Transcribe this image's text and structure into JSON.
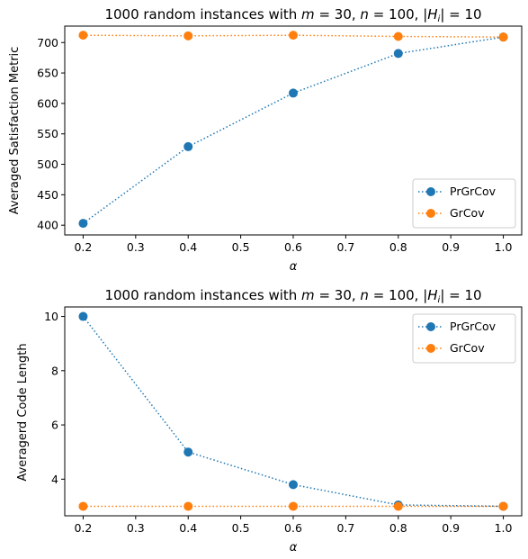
{
  "chart_data": [
    {
      "type": "line",
      "title": "1000 random instances with m = 30, n = 100, |H_i| = 10",
      "title_parts": {
        "prefix": "1000 random instances with ",
        "m_var": "m",
        "m_val": " = 30, ",
        "n_var": "n",
        "n_val": " = 100, |",
        "h_var": "H",
        "h_sub": "i",
        "h_val": "| = 10"
      },
      "xlabel": "α",
      "ylabel": "Averaged Satisfaction Metric",
      "x": [
        0.2,
        0.4,
        0.6,
        0.8,
        1.0
      ],
      "xlim": [
        0.165,
        1.035
      ],
      "ylim": [
        384,
        727
      ],
      "xticks": [
        "0.2",
        "0.3",
        "0.4",
        "0.5",
        "0.6",
        "0.7",
        "0.8",
        "0.9",
        "1.0"
      ],
      "yticks": [
        "400",
        "450",
        "500",
        "550",
        "600",
        "650",
        "700"
      ],
      "grid": false,
      "legend_position": "lower right",
      "series": [
        {
          "name": "PrGrCov",
          "color": "#1f77b4",
          "values": [
            403,
            529,
            617,
            682,
            709
          ]
        },
        {
          "name": "GrCov",
          "color": "#ff7f0e",
          "values": [
            712,
            711,
            712,
            710,
            709
          ]
        }
      ]
    },
    {
      "type": "line",
      "title": "1000 random instances with m = 30, n = 100, |H_i| = 10",
      "title_parts": {
        "prefix": "1000 random instances with ",
        "m_var": "m",
        "m_val": " = 30, ",
        "n_var": "n",
        "n_val": " = 100, |",
        "h_var": "H",
        "h_sub": "i",
        "h_val": "| = 10"
      },
      "xlabel": "α",
      "ylabel": "Averagerd Code Length",
      "x": [
        0.2,
        0.4,
        0.6,
        0.8,
        1.0
      ],
      "xlim": [
        0.165,
        1.035
      ],
      "ylim": [
        2.65,
        10.35
      ],
      "xticks": [
        "0.2",
        "0.3",
        "0.4",
        "0.5",
        "0.6",
        "0.7",
        "0.8",
        "0.9",
        "1.0"
      ],
      "yticks": [
        "4",
        "6",
        "8",
        "10"
      ],
      "grid": false,
      "legend_position": "upper right",
      "series": [
        {
          "name": "PrGrCov",
          "color": "#1f77b4",
          "values": [
            10.0,
            5.0,
            3.8,
            3.05,
            3.0
          ]
        },
        {
          "name": "GrCov",
          "color": "#ff7f0e",
          "values": [
            3.0,
            3.0,
            3.0,
            3.0,
            3.0
          ]
        }
      ]
    }
  ]
}
